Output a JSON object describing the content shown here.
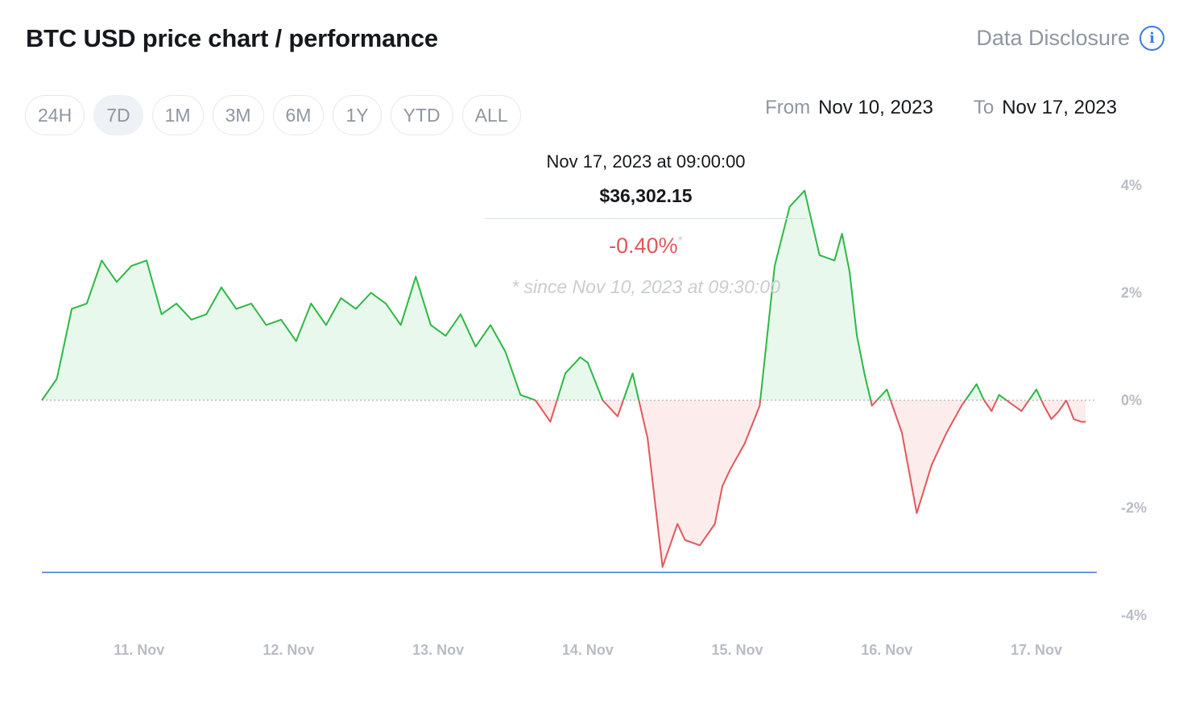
{
  "title": "BTC USD price chart / performance",
  "disclosure": {
    "label": "Data Disclosure",
    "icon": "info-icon"
  },
  "ranges": [
    "24H",
    "7D",
    "1M",
    "3M",
    "6M",
    "1Y",
    "YTD",
    "ALL"
  ],
  "active_range": "7D",
  "date_range": {
    "from_label": "From",
    "from": "Nov 10, 2023",
    "to_label": "To",
    "to": "Nov 17, 2023"
  },
  "tooltip": {
    "date": "Nov 17, 2023 at 09:00:00",
    "price": "$36,302.15",
    "change": "-0.40%",
    "asterisk": "*",
    "since": "* since Nov 10, 2023 at 09:30:00"
  },
  "colors": {
    "up": "#2bb943",
    "down": "#e0585b",
    "baseline": "#3b6fd8",
    "up_fill": "#e9f8ec",
    "down_fill": "#fdecec"
  },
  "chart_data": {
    "type": "area",
    "ylabel_unit": "%",
    "ylim": [
      -4,
      4
    ],
    "yticks": [
      "4%",
      "2%",
      "0%",
      "-2%",
      "-4%"
    ],
    "yticks_values": [
      4,
      2,
      0,
      -2,
      -4
    ],
    "xticks": [
      "11. Nov",
      "12. Nov",
      "13. Nov",
      "14. Nov",
      "15. Nov",
      "16. Nov",
      "17. Nov"
    ],
    "xticks_values": [
      11,
      12,
      13,
      14,
      15,
      16,
      17
    ],
    "xlim": [
      10.35,
      17.35
    ],
    "baseline_value": -3.2,
    "series": [
      {
        "x": [
          10.35,
          10.45,
          10.55,
          10.65,
          10.75,
          10.85,
          10.95,
          11.05,
          11.15,
          11.25,
          11.35,
          11.45,
          11.55,
          11.65,
          11.75,
          11.85,
          11.95,
          12.05,
          12.15,
          12.25,
          12.35,
          12.45,
          12.55,
          12.65,
          12.75,
          12.85,
          12.95,
          13.05,
          13.15,
          13.25,
          13.35,
          13.45,
          13.55,
          13.65,
          13.75,
          13.85,
          13.95,
          14.0,
          14.1,
          14.2,
          14.3,
          14.4,
          14.5,
          14.6,
          14.65,
          14.75,
          14.85,
          14.9,
          14.95,
          15.05,
          15.15,
          15.25,
          15.35,
          15.45,
          15.55,
          15.65,
          15.7,
          15.75,
          15.8,
          15.85,
          15.9,
          16.0,
          16.1,
          16.2,
          16.3,
          16.4,
          16.5,
          16.6,
          16.65,
          16.7,
          16.75,
          16.8,
          16.9,
          17.0,
          17.05,
          17.1,
          17.15,
          17.2,
          17.25,
          17.3,
          17.33
        ],
        "y": [
          0.0,
          0.4,
          1.7,
          1.8,
          2.6,
          2.2,
          2.5,
          2.6,
          1.6,
          1.8,
          1.5,
          1.6,
          2.1,
          1.7,
          1.8,
          1.4,
          1.5,
          1.1,
          1.8,
          1.4,
          1.9,
          1.7,
          2.0,
          1.8,
          1.4,
          2.3,
          1.4,
          1.2,
          1.6,
          1.0,
          1.4,
          0.9,
          0.1,
          0.0,
          -0.4,
          0.5,
          0.8,
          0.7,
          0.0,
          -0.3,
          0.5,
          -0.7,
          -3.1,
          -2.3,
          -2.6,
          -2.7,
          -2.3,
          -1.6,
          -1.3,
          -0.8,
          -0.1,
          2.5,
          3.6,
          3.9,
          2.7,
          2.6,
          3.1,
          2.4,
          1.2,
          0.5,
          -0.1,
          0.2,
          -0.6,
          -2.1,
          -1.2,
          -0.6,
          -0.1,
          0.3,
          0.0,
          -0.2,
          0.1,
          0.0,
          -0.2,
          0.2,
          -0.1,
          -0.35,
          -0.2,
          0.0,
          -0.35,
          -0.4,
          -0.4
        ]
      }
    ]
  }
}
